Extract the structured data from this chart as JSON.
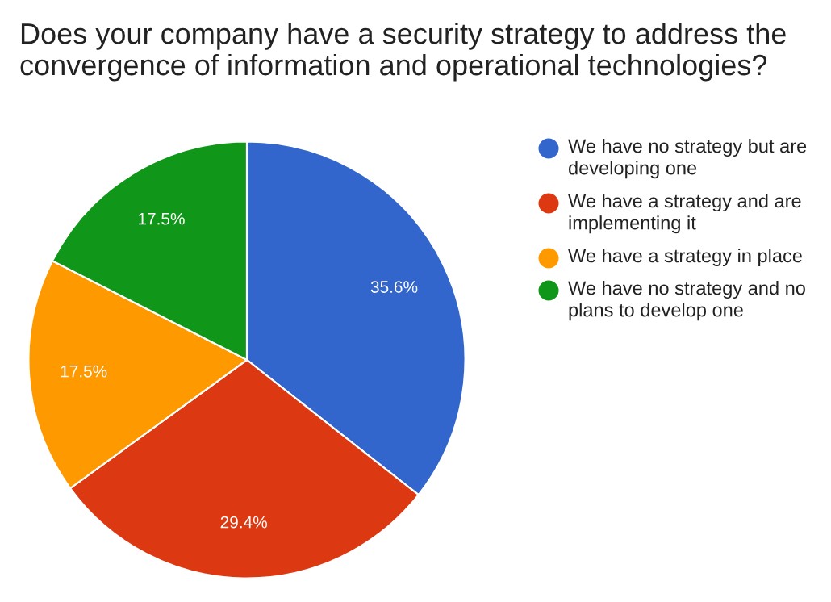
{
  "chart_data": {
    "type": "pie",
    "title": "Does your company have a security strategy to address the convergence of information and operational technologies?",
    "categories": [
      "We have no strategy but are developing one",
      "We have a strategy and are implementing it",
      "We have a strategy in place",
      "We have no strategy and no plans to develop one"
    ],
    "values": [
      35.6,
      29.4,
      17.5,
      17.5
    ],
    "colors": [
      "#3366cc",
      "#dc3912",
      "#ff9900",
      "#109618"
    ],
    "value_labels": [
      "35.6%",
      "29.4%",
      "17.5%",
      "17.5%"
    ],
    "legend": "right"
  }
}
